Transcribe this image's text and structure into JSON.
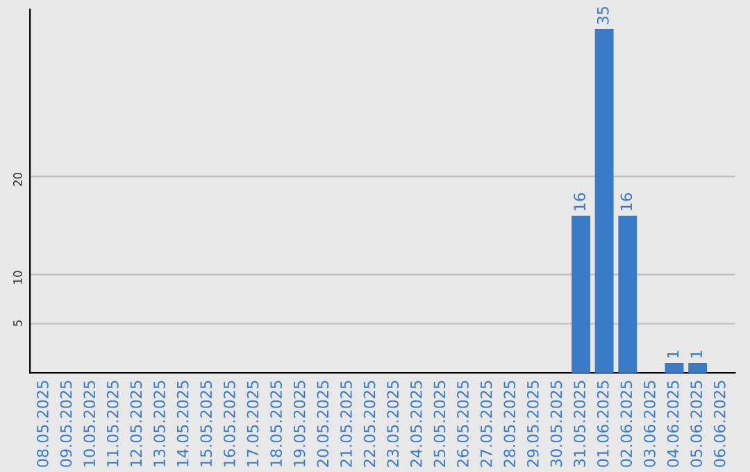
{
  "chart_data": {
    "type": "bar",
    "categories": [
      "08.05.2025",
      "09.05.2025",
      "10.05.2025",
      "11.05.2025",
      "12.05.2025",
      "13.05.2025",
      "14.05.2025",
      "15.05.2025",
      "16.05.2025",
      "17.05.2025",
      "18.05.2025",
      "19.05.2025",
      "20.05.2025",
      "21.05.2025",
      "22.05.2025",
      "23.05.2025",
      "24.05.2025",
      "25.05.2025",
      "26.05.2025",
      "27.05.2025",
      "28.05.2025",
      "29.05.2025",
      "30.05.2025",
      "31.05.2025",
      "01.06.2025",
      "02.06.2025",
      "03.06.2025",
      "04.06.2025",
      "05.06.2025",
      "06.06.2025"
    ],
    "values": [
      0,
      0,
      0,
      0,
      0,
      0,
      0,
      0,
      0,
      0,
      0,
      0,
      0,
      0,
      0,
      0,
      0,
      0,
      0,
      0,
      0,
      0,
      0,
      16,
      35,
      16,
      0,
      1,
      1,
      0
    ],
    "value_labels": [
      null,
      null,
      null,
      null,
      null,
      null,
      null,
      null,
      null,
      null,
      null,
      null,
      null,
      null,
      null,
      null,
      null,
      null,
      null,
      null,
      null,
      null,
      null,
      "16",
      "35",
      "16",
      null,
      "1",
      "1",
      null
    ],
    "color": "#3a7bc8",
    "ylim": [
      0,
      37
    ],
    "yticks": [
      5,
      10,
      20
    ],
    "grid": "y",
    "legend": false
  }
}
